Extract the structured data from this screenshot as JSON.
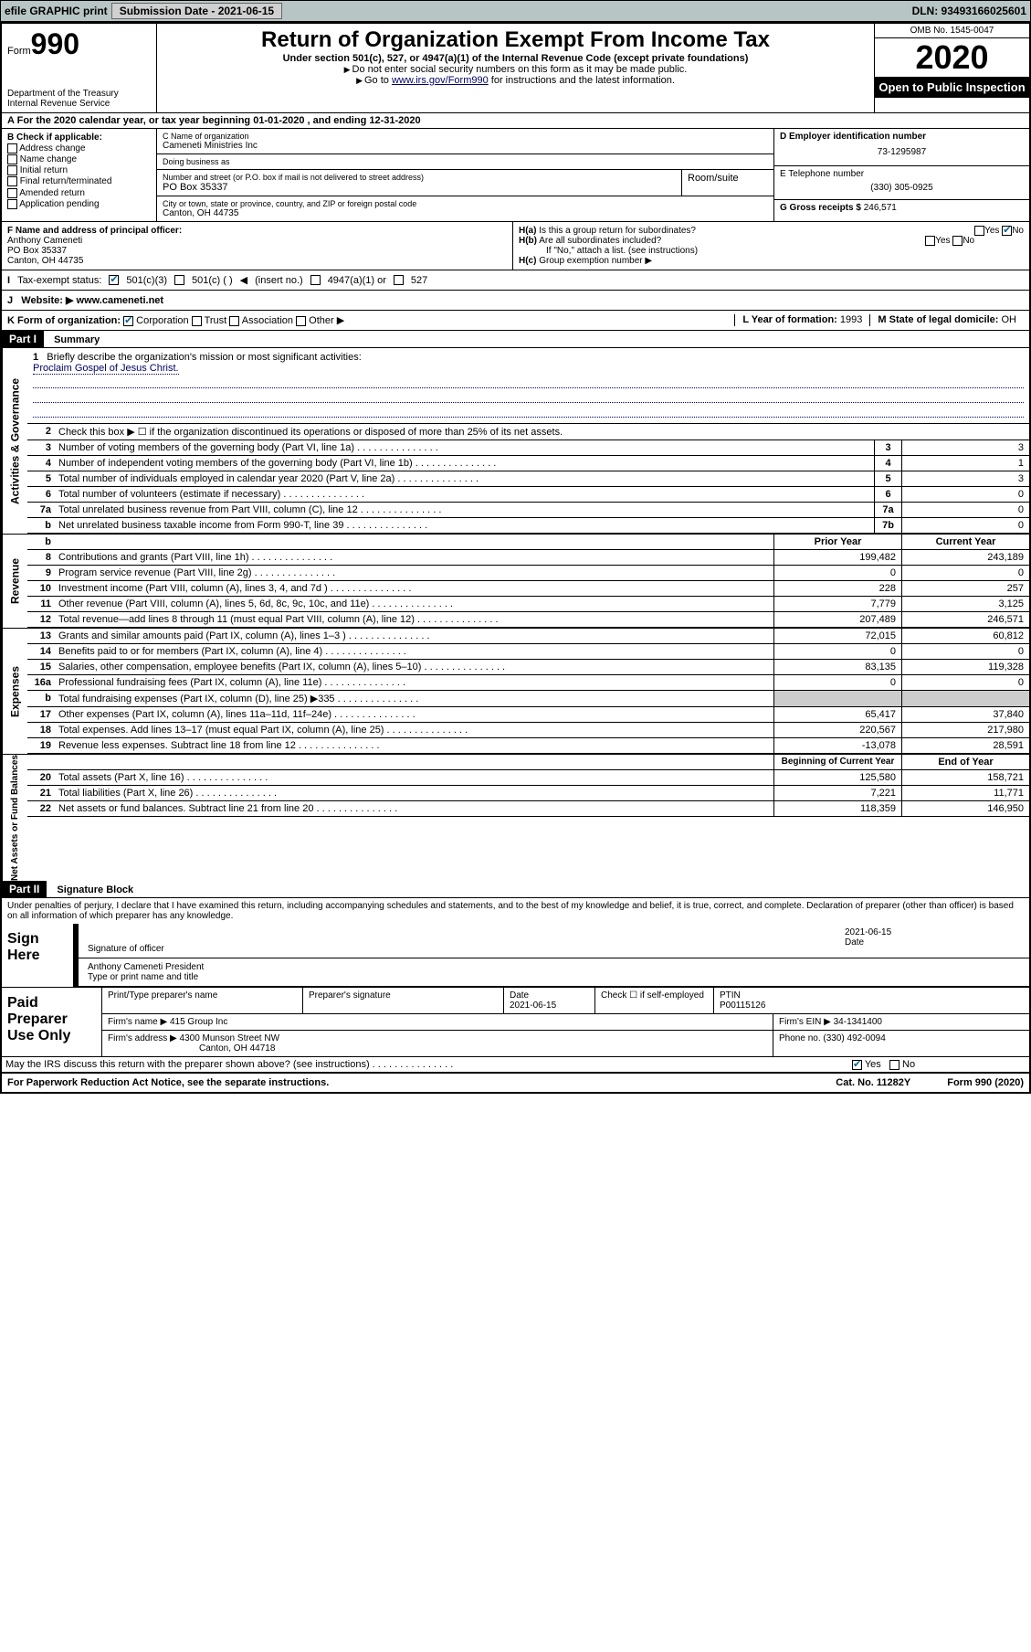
{
  "topbar": {
    "efile": "efile GRAPHIC print",
    "submission": "Submission Date - 2021-06-15",
    "dln": "DLN: 93493166025601"
  },
  "header": {
    "form": "Form",
    "num": "990",
    "dept": "Department of the Treasury",
    "irs": "Internal Revenue Service",
    "title": "Return of Organization Exempt From Income Tax",
    "sub": "Under section 501(c), 527, or 4947(a)(1) of the Internal Revenue Code (except private foundations)",
    "note1": "Do not enter social security numbers on this form as it may be made public.",
    "note2_pre": "Go to ",
    "note2_link": "www.irs.gov/Form990",
    "note2_post": " for instructions and the latest information.",
    "omb": "OMB No. 1545-0047",
    "year": "2020",
    "inspect": "Open to Public Inspection"
  },
  "rowA": "For the 2020 calendar year, or tax year beginning 01-01-2020   , and ending 12-31-2020",
  "boxB": {
    "title": "B Check if applicable:",
    "items": [
      "Address change",
      "Name change",
      "Initial return",
      "Final return/terminated",
      "Amended return",
      "Application pending"
    ]
  },
  "boxC": {
    "name_lbl": "C Name of organization",
    "name": "Cameneti Ministries Inc",
    "dba_lbl": "Doing business as",
    "dba": "",
    "street_lbl": "Number and street (or P.O. box if mail is not delivered to street address)",
    "street": "PO Box 35337",
    "room_lbl": "Room/suite",
    "city_lbl": "City or town, state or province, country, and ZIP or foreign postal code",
    "city": "Canton, OH  44735"
  },
  "boxD": {
    "lbl": "D Employer identification number",
    "val": "73-1295987"
  },
  "boxE": {
    "lbl": "E Telephone number",
    "val": "(330) 305-0925"
  },
  "boxG": {
    "lbl": "G Gross receipts $",
    "val": "246,571"
  },
  "boxF": {
    "lbl": "F  Name and address of principal officer:",
    "name": "Anthony Cameneti",
    "addr1": "PO Box 35337",
    "addr2": "Canton, OH  44735"
  },
  "boxH": {
    "a": "Is this a group return for subordinates?",
    "b": "Are all subordinates included?",
    "bnote": "If \"No,\" attach a list. (see instructions)",
    "c": "Group exemption number"
  },
  "boxI": {
    "lbl": "Tax-exempt status:",
    "opts": [
      "501(c)(3)",
      "501(c) (  )",
      "(insert no.)",
      "4947(a)(1) or",
      "527"
    ]
  },
  "boxJ": {
    "lbl": "Website:",
    "val": "www.cameneti.net"
  },
  "boxK": {
    "lbl": "K Form of organization:",
    "opts": [
      "Corporation",
      "Trust",
      "Association",
      "Other"
    ]
  },
  "boxL": {
    "lbl": "L Year of formation:",
    "val": "1993"
  },
  "boxM": {
    "lbl": "M State of legal domicile:",
    "val": "OH"
  },
  "part1": {
    "hdr": "Part I",
    "title": "Summary",
    "q1": "Briefly describe the organization's mission or most significant activities:",
    "mission": "Proclaim Gospel of Jesus Christ.",
    "q2": "Check this box ▶ ☐  if the organization discontinued its operations or disposed of more than 25% of its net assets.",
    "tabs": {
      "ag": "Activities & Governance",
      "rev": "Revenue",
      "exp": "Expenses",
      "na": "Net Assets or Fund Balances"
    },
    "lines_ag": [
      {
        "n": "3",
        "d": "Number of voting members of the governing body (Part VI, line 1a)",
        "b": "3",
        "v": "3"
      },
      {
        "n": "4",
        "d": "Number of independent voting members of the governing body (Part VI, line 1b)",
        "b": "4",
        "v": "1"
      },
      {
        "n": "5",
        "d": "Total number of individuals employed in calendar year 2020 (Part V, line 2a)",
        "b": "5",
        "v": "3"
      },
      {
        "n": "6",
        "d": "Total number of volunteers (estimate if necessary)",
        "b": "6",
        "v": "0"
      },
      {
        "n": "7a",
        "d": "Total unrelated business revenue from Part VIII, column (C), line 12",
        "b": "7a",
        "v": "0"
      },
      {
        "n": "b",
        "d": "Net unrelated business taxable income from Form 990-T, line 39",
        "b": "7b",
        "v": "0"
      }
    ],
    "col_hdrs": {
      "py": "Prior Year",
      "cy": "Current Year"
    },
    "lines_rev": [
      {
        "n": "8",
        "d": "Contributions and grants (Part VIII, line 1h)",
        "py": "199,482",
        "cy": "243,189"
      },
      {
        "n": "9",
        "d": "Program service revenue (Part VIII, line 2g)",
        "py": "0",
        "cy": "0"
      },
      {
        "n": "10",
        "d": "Investment income (Part VIII, column (A), lines 3, 4, and 7d )",
        "py": "228",
        "cy": "257"
      },
      {
        "n": "11",
        "d": "Other revenue (Part VIII, column (A), lines 5, 6d, 8c, 9c, 10c, and 11e)",
        "py": "7,779",
        "cy": "3,125"
      },
      {
        "n": "12",
        "d": "Total revenue—add lines 8 through 11 (must equal Part VIII, column (A), line 12)",
        "py": "207,489",
        "cy": "246,571"
      }
    ],
    "lines_exp": [
      {
        "n": "13",
        "d": "Grants and similar amounts paid (Part IX, column (A), lines 1–3 )",
        "py": "72,015",
        "cy": "60,812"
      },
      {
        "n": "14",
        "d": "Benefits paid to or for members (Part IX, column (A), line 4)",
        "py": "0",
        "cy": "0"
      },
      {
        "n": "15",
        "d": "Salaries, other compensation, employee benefits (Part IX, column (A), lines 5–10)",
        "py": "83,135",
        "cy": "119,328"
      },
      {
        "n": "16a",
        "d": "Professional fundraising fees (Part IX, column (A), line 11e)",
        "py": "0",
        "cy": "0"
      },
      {
        "n": "b",
        "d": "Total fundraising expenses (Part IX, column (D), line 25) ▶335",
        "py": "",
        "cy": "",
        "shade": true
      },
      {
        "n": "17",
        "d": "Other expenses (Part IX, column (A), lines 11a–11d, 11f–24e)",
        "py": "65,417",
        "cy": "37,840"
      },
      {
        "n": "18",
        "d": "Total expenses. Add lines 13–17 (must equal Part IX, column (A), line 25)",
        "py": "220,567",
        "cy": "217,980"
      },
      {
        "n": "19",
        "d": "Revenue less expenses. Subtract line 18 from line 12",
        "py": "-13,078",
        "cy": "28,591"
      }
    ],
    "col_hdrs2": {
      "py": "Beginning of Current Year",
      "cy": "End of Year"
    },
    "lines_na": [
      {
        "n": "20",
        "d": "Total assets (Part X, line 16)",
        "py": "125,580",
        "cy": "158,721"
      },
      {
        "n": "21",
        "d": "Total liabilities (Part X, line 26)",
        "py": "7,221",
        "cy": "11,771"
      },
      {
        "n": "22",
        "d": "Net assets or fund balances. Subtract line 21 from line 20",
        "py": "118,359",
        "cy": "146,950"
      }
    ]
  },
  "part2": {
    "hdr": "Part II",
    "title": "Signature Block",
    "perjury": "Under penalties of perjury, I declare that I have examined this return, including accompanying schedules and statements, and to the best of my knowledge and belief, it is true, correct, and complete. Declaration of preparer (other than officer) is based on all information of which preparer has any knowledge.",
    "sign_here": "Sign Here",
    "sig_officer": "Signature of officer",
    "sig_date": "2021-06-15",
    "date_lbl": "Date",
    "officer_name": "Anthony Cameneti  President",
    "type_name": "Type or print name and title",
    "paid_prep": "Paid Preparer Use Only",
    "prep_name_lbl": "Print/Type preparer's name",
    "prep_sig_lbl": "Preparer's signature",
    "prep_date_lbl": "Date",
    "prep_date": "2021-06-15",
    "check_self": "Check ☐ if self-employed",
    "ptin_lbl": "PTIN",
    "ptin": "P00115126",
    "firm_name_lbl": "Firm's name   ▶",
    "firm_name": "415 Group Inc",
    "firm_ein_lbl": "Firm's EIN ▶",
    "firm_ein": "34-1341400",
    "firm_addr_lbl": "Firm's address ▶",
    "firm_addr1": "4300 Munson Street NW",
    "firm_addr2": "Canton, OH  44718",
    "phone_lbl": "Phone no.",
    "phone": "(330) 492-0094",
    "discuss": "May the IRS discuss this return with the preparer shown above? (see instructions)"
  },
  "footer": {
    "pra": "For Paperwork Reduction Act Notice, see the separate instructions.",
    "cat": "Cat. No. 11282Y",
    "form": "Form 990 (2020)"
  }
}
